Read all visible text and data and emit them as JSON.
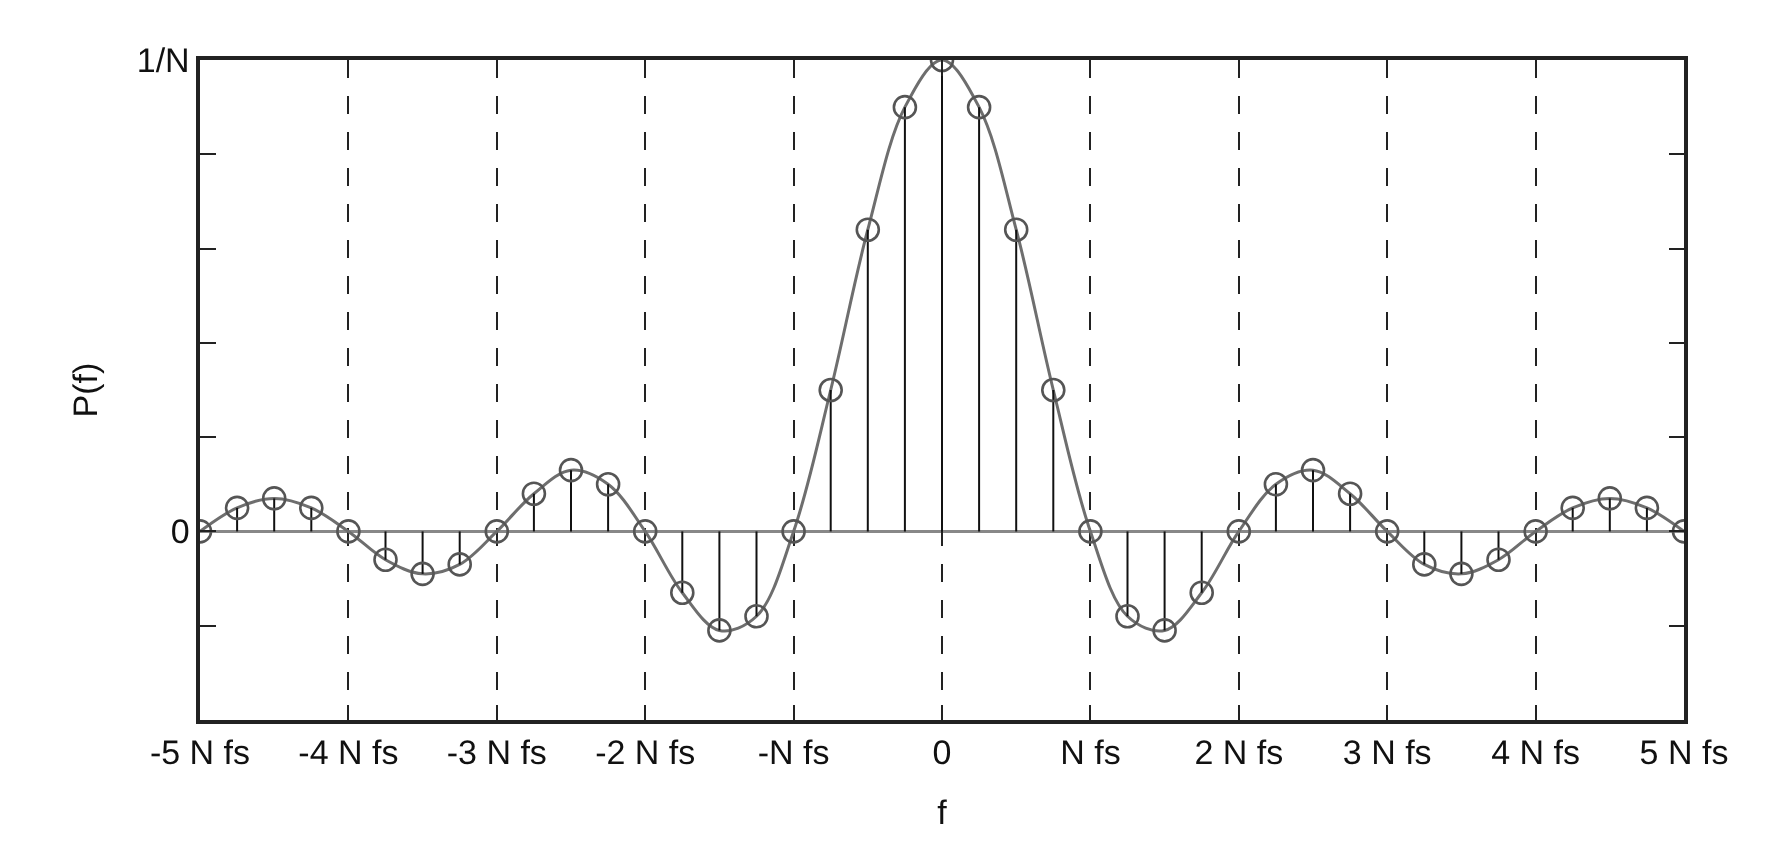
{
  "chart_data": {
    "type": "lollipop",
    "xlabel": "f",
    "ylabel": "P(f)",
    "x": [
      -5,
      -4.75,
      -4.5,
      -4.25,
      -4,
      -3.75,
      -3.5,
      -3.25,
      -3,
      -2.75,
      -2.5,
      -2.25,
      -2,
      -1.75,
      -1.5,
      -1.25,
      -1,
      -0.75,
      -0.5,
      -0.25,
      0,
      0.25,
      0.5,
      0.75,
      1,
      1.25,
      1.5,
      1.75,
      2,
      2.25,
      2.5,
      2.75,
      3,
      3.25,
      3.5,
      3.75,
      4,
      4.25,
      4.5,
      4.75,
      5
    ],
    "series": [
      {
        "type": "line",
        "marker": "none",
        "color": "#6e6e6e",
        "values": [
          0,
          0.05,
          0.07,
          0.05,
          0,
          -0.06,
          -0.09,
          -0.07,
          0,
          0.08,
          0.13,
          0.1,
          0,
          -0.13,
          -0.21,
          -0.18,
          0,
          0.3,
          0.64,
          0.9,
          1,
          0.9,
          0.64,
          0.3,
          0,
          -0.18,
          -0.21,
          -0.13,
          0,
          0.1,
          0.13,
          0.08,
          0,
          -0.07,
          -0.09,
          -0.06,
          0,
          0.05,
          0.07,
          0.05,
          0
        ]
      },
      {
        "color": "#555555",
        "values": [
          0,
          0.05,
          0.07,
          0.05,
          0,
          -0.06,
          -0.09,
          -0.07,
          0,
          0.08,
          0.13,
          0.1,
          0,
          -0.13,
          -0.21,
          -0.18,
          0,
          0.3,
          0.64,
          0.9,
          1,
          0.9,
          0.64,
          0.3,
          0,
          -0.18,
          -0.21,
          -0.13,
          0,
          0.1,
          0.13,
          0.08,
          0,
          -0.07,
          -0.09,
          -0.06,
          0,
          0.05,
          0.07,
          0.05,
          0
        ]
      }
    ],
    "xlim": [
      -5,
      5
    ],
    "xticks": [
      {
        "value": -5,
        "label": "-5 N fs"
      },
      {
        "value": -4,
        "label": "-4 N fs"
      },
      {
        "value": -3,
        "label": "-3 N fs"
      },
      {
        "value": -2,
        "label": "-2 N fs"
      },
      {
        "value": -1,
        "label": "-N fs"
      },
      0,
      {
        "value": 1,
        "label": "N fs"
      },
      {
        "value": 2,
        "label": "2 N fs"
      },
      {
        "value": 3,
        "label": "3 N fs"
      },
      {
        "value": 4,
        "label": "4 N fs"
      },
      {
        "value": 5,
        "label": "5 N fs"
      }
    ],
    "ylim": [
      -0.4,
      1
    ],
    "yticks": [
      {
        "value": -0.2,
        "label": null
      },
      0,
      {
        "value": 0.2,
        "label": null
      },
      {
        "value": 0.4,
        "label": null
      },
      {
        "value": 0.6,
        "label": null
      },
      {
        "value": 0.8,
        "label": null
      },
      {
        "value": 1,
        "label": "1/N"
      }
    ],
    "grid": "x",
    "marker": "circle",
    "legend": false
  }
}
